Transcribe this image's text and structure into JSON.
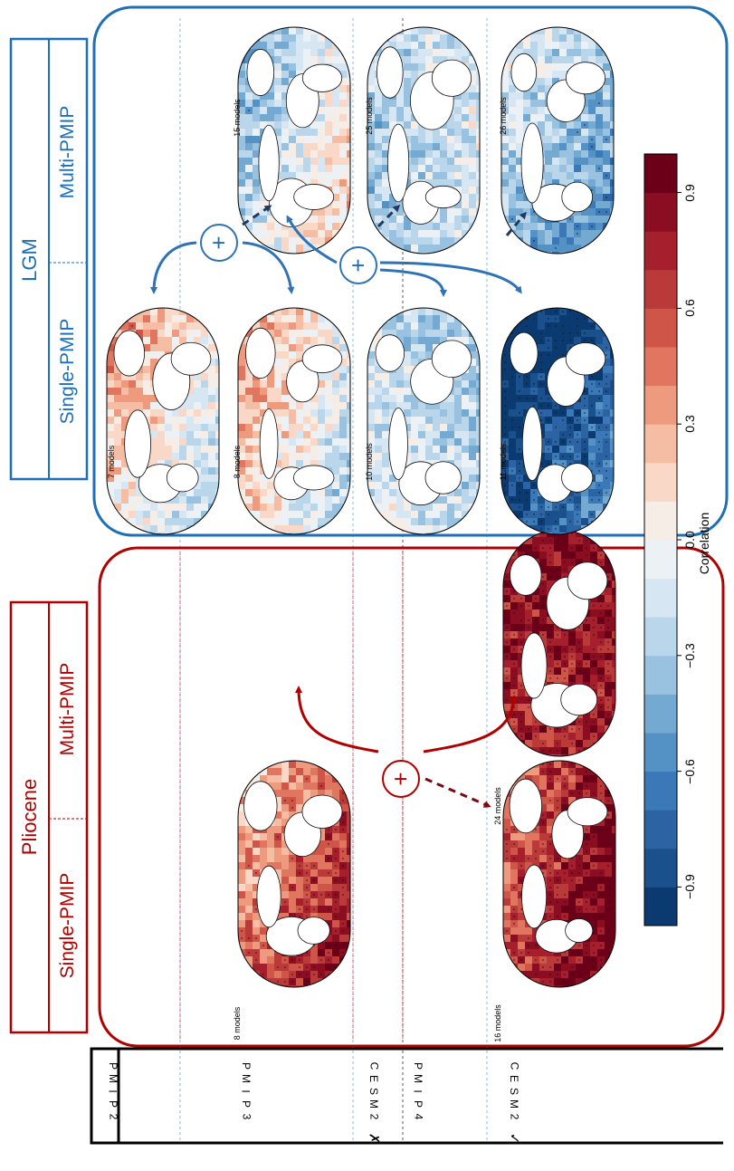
{
  "row_labels": [
    {
      "id": "pmip2",
      "chars": [
        "P",
        "M",
        "I",
        "P",
        "2"
      ]
    },
    {
      "id": "pmip3",
      "chars": [
        "P",
        "M",
        "I",
        "P",
        "3"
      ]
    },
    {
      "id": "cesm2-x",
      "chars": [
        "C",
        "E",
        "S",
        "M",
        "2"
      ],
      "mark": "✗"
    },
    {
      "id": "pmip4",
      "chars": [
        "P",
        "M",
        "I",
        "P",
        "4"
      ]
    },
    {
      "id": "cesm2-check",
      "chars": [
        "C",
        "E",
        "S",
        "M",
        "2"
      ],
      "mark": "✓"
    }
  ],
  "pliocene": {
    "title": "Pliocene",
    "single": "Single-PMIP",
    "multi": "Multi-PMIP",
    "color": "#b00000",
    "maps": [
      {
        "id": "plio-pmip3-single",
        "label": "8 models",
        "mean": 0.55
      },
      {
        "id": "plio-pmip4-single",
        "label": "16 models",
        "mean": 0.75
      },
      {
        "id": "plio-pmip4-multi",
        "label": "24 models",
        "mean": 0.8
      }
    ],
    "plus": "+"
  },
  "lgm": {
    "title": "LGM",
    "single": "Single-PMIP",
    "multi": "Multi-PMIP",
    "color": "#1d6fb8",
    "maps": [
      {
        "id": "lgm-pmip2-single",
        "label": "7 models",
        "mean": 0.05
      },
      {
        "id": "lgm-pmip3-single",
        "label": "8 models",
        "mean": 0.05
      },
      {
        "id": "lgm-cesmx-single",
        "label": "10 models",
        "mean": -0.2
      },
      {
        "id": "lgm-pmip4-single",
        "label": "11 models",
        "mean": -0.85
      },
      {
        "id": "lgm-pmip23-multi",
        "label": "15 models",
        "mean": -0.1
      },
      {
        "id": "lgm-cesmx-multi",
        "label": "25 models",
        "mean": -0.2
      },
      {
        "id": "lgm-pmip4-multi",
        "label": "26 models",
        "mean": -0.35
      }
    ],
    "plus": "+"
  },
  "colorbar": {
    "label": "Correlation",
    "ticks": [
      "−0.9",
      "−0.6",
      "−0.3",
      "0.0",
      "0.3",
      "0.6",
      "0.9"
    ],
    "tick_values": [
      -0.9,
      -0.6,
      -0.3,
      0.0,
      0.3,
      0.6,
      0.9
    ],
    "range": [
      -1,
      1
    ],
    "colors": [
      "#0a3a70",
      "#1a508c",
      "#2b63a3",
      "#3a78b8",
      "#5492c6",
      "#74a9d2",
      "#98c2e0",
      "#b9d6ea",
      "#d6e6f2",
      "#ecf1f5",
      "#f7ede7",
      "#f9d8c8",
      "#f5bda4",
      "#ee9a7e",
      "#e0765f",
      "#cf5549",
      "#ba3a39",
      "#a51f2c",
      "#8a0d22",
      "#6b0018"
    ]
  }
}
